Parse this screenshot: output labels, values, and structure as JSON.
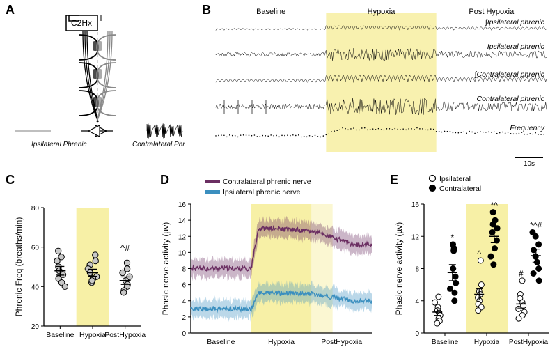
{
  "panels": {
    "A": {
      "label": "A",
      "box": "C2Hx",
      "left_label": "Ipsilateral Phrenic",
      "right_label": "Contralateral Phrenic"
    },
    "B": {
      "label": "B",
      "phases": [
        "Baseline",
        "Hypoxia",
        "Post Hypoxia"
      ],
      "traces": [
        "∫Ipsilateral phrenic",
        "Ipsilateral phrenic",
        "∫Contralateral phrenic",
        "Contralateral phrenic",
        "Frequency"
      ],
      "scalebar": "10s",
      "highlight_color": "#f7f0a6"
    },
    "C": {
      "label": "C",
      "ylabel": "Phrenic Freq (breaths/min)",
      "ylim": [
        20,
        80
      ],
      "ytick_step": 20,
      "categories": [
        "Baseline",
        "Hypoxia",
        "PostHypoxia"
      ],
      "data": {
        "Baseline": [
          58,
          55,
          53,
          50,
          48,
          46,
          44,
          42,
          40
        ],
        "Hypoxia": [
          56,
          53,
          51,
          49,
          47,
          45,
          44,
          42,
          43
        ],
        "PostHypoxia": [
          52,
          49,
          47,
          45,
          43,
          41,
          40,
          38,
          37
        ]
      },
      "means": {
        "Baseline": 48,
        "Hypoxia": 47,
        "PostHypoxia": 43
      },
      "sem": {
        "Baseline": 2.2,
        "Hypoxia": 1.8,
        "PostHypoxia": 1.9
      },
      "marker_fill": "#c8c8c8",
      "marker_stroke": "#000000",
      "highlight_color": "#f7f0a6",
      "annotation": "^#"
    },
    "D": {
      "label": "D",
      "ylabel": "Phasic nerve activity (µv)",
      "ylim": [
        0,
        16
      ],
      "ytick_step": 2,
      "phases": [
        "Baseline",
        "Hypoxia",
        "PostHypoxia"
      ],
      "legend": [
        {
          "name": "Contralateral phrenic nerve",
          "color": "#6b2e62"
        },
        {
          "name": "Ipsilateral phrenic nerve",
          "color": "#3b8fbf"
        }
      ],
      "contra_mean_baseline": 8.0,
      "contra_mean_hypoxia": 13.0,
      "contra_mean_post": 11.0,
      "ipsi_mean_baseline": 3.0,
      "ipsi_mean_hypoxia": 5.0,
      "ipsi_mean_post": 4.0,
      "band_halfwidth": 1.1,
      "highlight_color": "#f7f0a6",
      "highlight2_color": "#fbf7d2"
    },
    "E": {
      "label": "E",
      "ylabel": "Phasic nerve activity (µv)",
      "ylim": [
        0,
        16
      ],
      "ytick_step": 4,
      "categories": [
        "Baseline",
        "Hypoxia",
        "PostHypoxia"
      ],
      "legend": [
        {
          "name": "Ipsilateral",
          "fill": "#ffffff",
          "stroke": "#000000"
        },
        {
          "name": "Contralateral",
          "fill": "#000000",
          "stroke": "#000000"
        }
      ],
      "ipsi": {
        "Baseline": [
          4.5,
          3.8,
          3.2,
          2.8,
          2.5,
          2.2,
          1.8,
          1.5,
          1.2
        ],
        "Hypoxia": [
          9.0,
          6.0,
          5.2,
          4.8,
          4.4,
          4.0,
          3.6,
          3.2,
          2.8
        ],
        "PostHypoxia": [
          6.5,
          4.8,
          4.3,
          3.8,
          3.4,
          3.0,
          2.6,
          2.2,
          1.8
        ]
      },
      "contra": {
        "Baseline": [
          11.0,
          10.5,
          10.2,
          8.0,
          7.0,
          6.2,
          5.5,
          5.0,
          4.0
        ],
        "Hypoxia": [
          15.0,
          14.0,
          13.5,
          13.0,
          12.5,
          11.5,
          10.5,
          9.5,
          8.5
        ],
        "PostHypoxia": [
          12.5,
          12.0,
          11.0,
          10.3,
          9.5,
          8.8,
          8.0,
          7.4,
          6.5
        ]
      },
      "means": {
        "ipsi": {
          "Baseline": 2.6,
          "Hypoxia": 4.8,
          "PostHypoxia": 3.6
        },
        "contra": {
          "Baseline": 7.5,
          "Hypoxia": 12.0,
          "PostHypoxia": 9.6
        }
      },
      "sem": {
        "ipsi": {
          "Baseline": 0.4,
          "Hypoxia": 0.7,
          "PostHypoxia": 0.5
        },
        "contra": {
          "Baseline": 1.0,
          "Hypoxia": 0.8,
          "PostHypoxia": 0.8
        }
      },
      "annotations": {
        "Baseline": {
          "ipsi": "",
          "contra": "*"
        },
        "Hypoxia": {
          "ipsi": "^",
          "contra": "*^"
        },
        "PostHypoxia": {
          "ipsi": "#",
          "contra": "*^#"
        }
      },
      "highlight_color": "#f7f0a6"
    }
  },
  "colors": {
    "black": "#000000",
    "grey": "#888888"
  }
}
